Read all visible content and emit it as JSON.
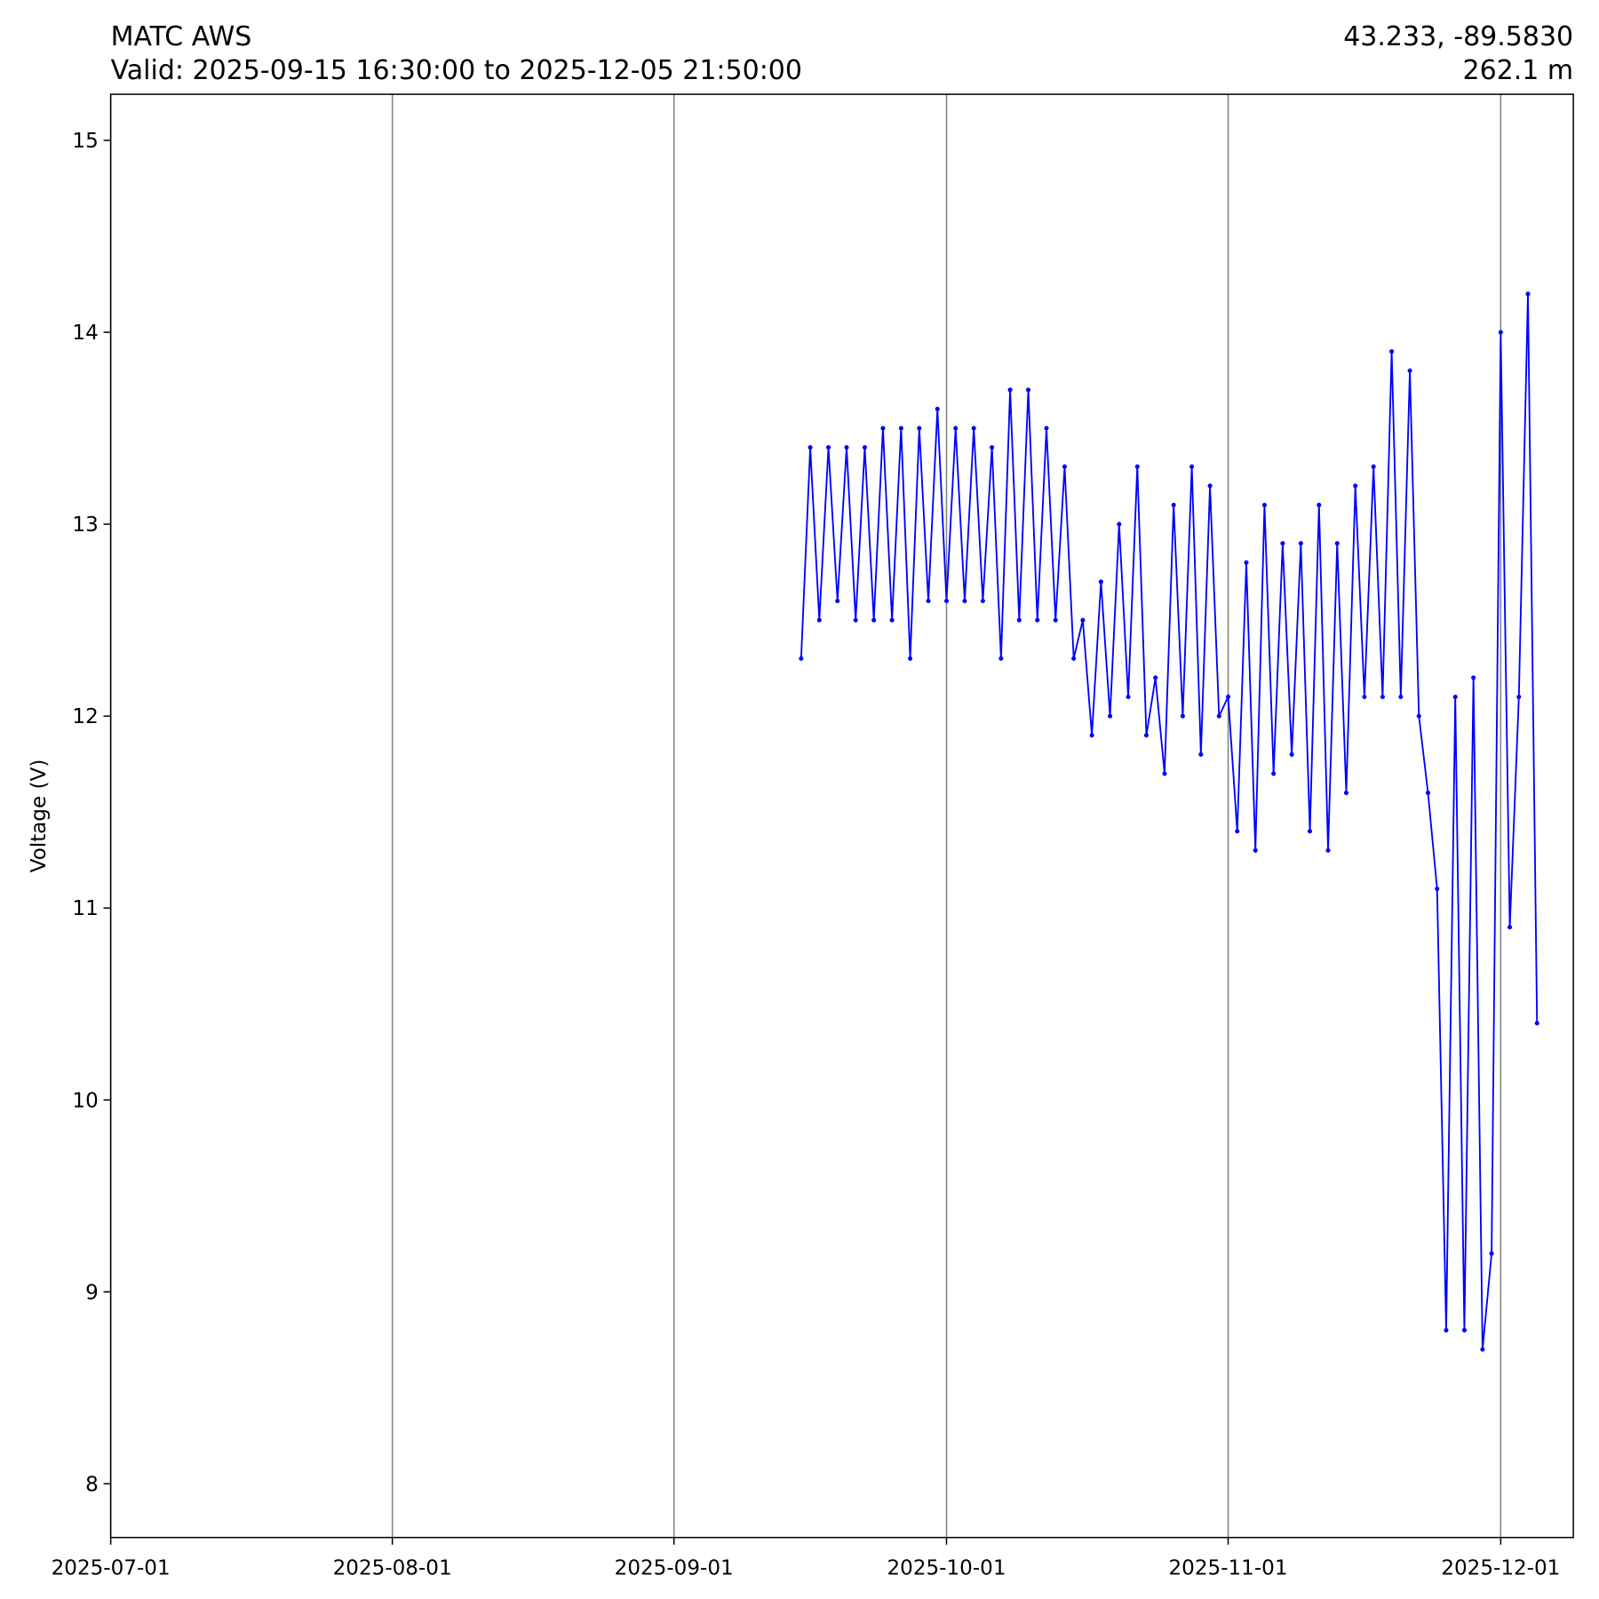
{
  "chart_data": {
    "type": "line",
    "title": "MATC AWS",
    "subtitle": "Valid: 2025-09-15 16:30:00 to 2025-12-05 21:50:00",
    "location": "43.233, -89.5830",
    "elevation": "262.1 m",
    "y_label": "Voltage (V)",
    "xlim": [
      "2025-07-01",
      "2025-12-09"
    ],
    "xticks": [
      "2025-07-01",
      "2025-08-01",
      "2025-09-01",
      "2025-10-01",
      "2025-11-01",
      "2025-12-01"
    ],
    "ylim": [
      7.72,
      15.24
    ],
    "yticks": [
      8,
      9,
      10,
      11,
      12,
      13,
      14,
      15
    ],
    "grid": true,
    "series": [
      {
        "name": "Voltage",
        "color": "#0000ff",
        "x": [
          "2025-09-15",
          "2025-09-16",
          "2025-09-17",
          "2025-09-18",
          "2025-09-19",
          "2025-09-20",
          "2025-09-21",
          "2025-09-22",
          "2025-09-23",
          "2025-09-24",
          "2025-09-25",
          "2025-09-26",
          "2025-09-27",
          "2025-09-28",
          "2025-09-29",
          "2025-09-30",
          "2025-10-01",
          "2025-10-02",
          "2025-10-03",
          "2025-10-04",
          "2025-10-05",
          "2025-10-06",
          "2025-10-07",
          "2025-10-08",
          "2025-10-09",
          "2025-10-10",
          "2025-10-11",
          "2025-10-12",
          "2025-10-13",
          "2025-10-14",
          "2025-10-15",
          "2025-10-16",
          "2025-10-17",
          "2025-10-18",
          "2025-10-19",
          "2025-10-20",
          "2025-10-21",
          "2025-10-22",
          "2025-10-23",
          "2025-10-24",
          "2025-10-25",
          "2025-10-26",
          "2025-10-27",
          "2025-10-28",
          "2025-10-29",
          "2025-10-30",
          "2025-10-31",
          "2025-11-01",
          "2025-11-02",
          "2025-11-03",
          "2025-11-04",
          "2025-11-05",
          "2025-11-06",
          "2025-11-07",
          "2025-11-08",
          "2025-11-09",
          "2025-11-10",
          "2025-11-11",
          "2025-11-12",
          "2025-11-13",
          "2025-11-14",
          "2025-11-15",
          "2025-11-16",
          "2025-11-17",
          "2025-11-18",
          "2025-11-19",
          "2025-11-20",
          "2025-11-21",
          "2025-11-22",
          "2025-11-23",
          "2025-11-24",
          "2025-11-25",
          "2025-11-26",
          "2025-11-27",
          "2025-11-28",
          "2025-11-29",
          "2025-11-30",
          "2025-12-01",
          "2025-12-02",
          "2025-12-03",
          "2025-12-04",
          "2025-12-05"
        ],
        "values": [
          12.3,
          13.4,
          12.5,
          13.4,
          12.6,
          13.4,
          12.5,
          13.4,
          12.5,
          13.5,
          12.5,
          13.5,
          12.3,
          13.5,
          12.6,
          13.6,
          12.6,
          13.5,
          12.6,
          13.5,
          12.6,
          13.4,
          12.3,
          13.7,
          12.5,
          13.7,
          12.5,
          13.5,
          12.5,
          13.3,
          12.3,
          12.5,
          11.9,
          12.7,
          12.0,
          13.0,
          12.1,
          13.3,
          11.9,
          12.2,
          11.7,
          13.1,
          12.0,
          13.3,
          11.8,
          13.2,
          12.0,
          12.1,
          11.4,
          12.8,
          11.3,
          13.1,
          11.7,
          12.9,
          11.8,
          12.9,
          11.4,
          13.1,
          11.3,
          12.9,
          11.6,
          13.2,
          12.1,
          13.3,
          12.1,
          13.9,
          12.1,
          13.8,
          12.0,
          11.6,
          11.1,
          8.8,
          12.1,
          8.8,
          12.2,
          8.7,
          9.2,
          14.0,
          10.9,
          12.1,
          14.2,
          10.4
        ]
      }
    ]
  }
}
